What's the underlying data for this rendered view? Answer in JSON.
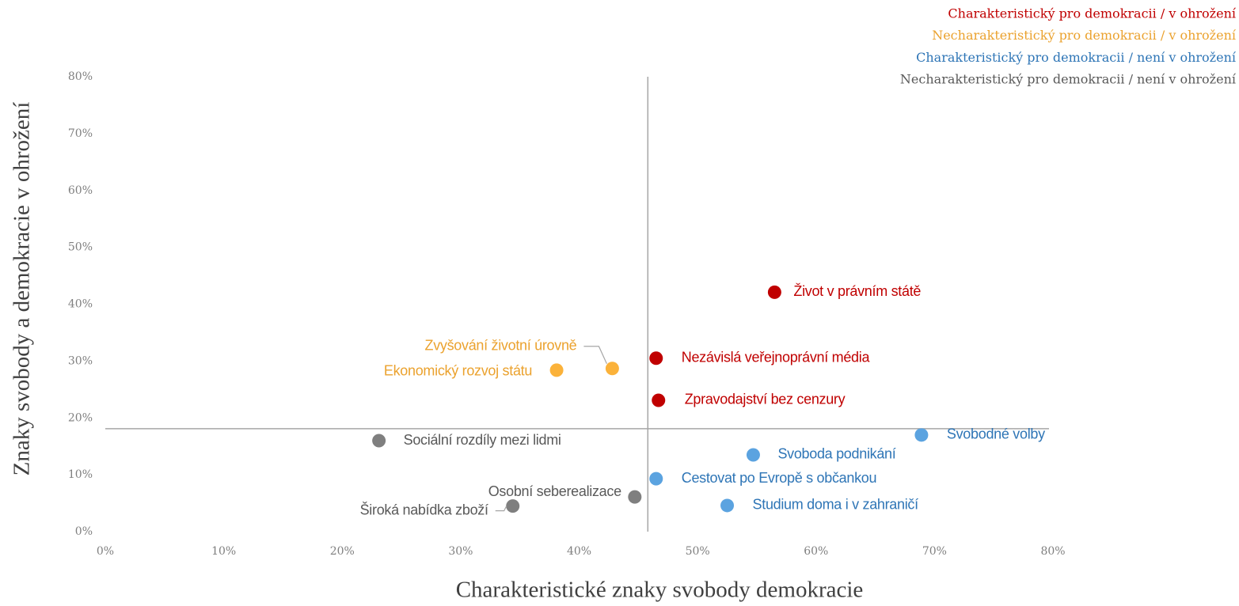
{
  "chart_data": {
    "type": "scatter",
    "xlabel": "Charakteristické znaky svobody demokracie",
    "ylabel": "Znaky svobody a demokracie v ohrožení",
    "xlim": [
      0,
      80
    ],
    "ylim": [
      0,
      80
    ],
    "xticks": [
      {
        "value": 0,
        "label": "0%"
      },
      {
        "value": 10,
        "label": "10%"
      },
      {
        "value": 20,
        "label": "20%"
      },
      {
        "value": 30,
        "label": "30%"
      },
      {
        "value": 40,
        "label": "40%"
      },
      {
        "value": 50,
        "label": "50%"
      },
      {
        "value": 60,
        "label": "60%"
      },
      {
        "value": 70,
        "label": "70%"
      },
      {
        "value": 80,
        "label": "80%"
      }
    ],
    "yticks": [
      {
        "value": 0,
        "label": "0%"
      },
      {
        "value": 10,
        "label": "10%"
      },
      {
        "value": 20,
        "label": "20%"
      },
      {
        "value": 30,
        "label": "30%"
      },
      {
        "value": 40,
        "label": "40%"
      },
      {
        "value": 50,
        "label": "50%"
      },
      {
        "value": 60,
        "label": "60%"
      },
      {
        "value": 70,
        "label": "70%"
      },
      {
        "value": 80,
        "label": "80%"
      }
    ],
    "grid": false,
    "legend": "top-right",
    "crosshair": {
      "x": 45.8,
      "y": 18.1,
      "color": "#a6a6a6"
    },
    "series": [
      {
        "name": "Charakteristický pro demokracii / v ohrožení",
        "color": "#c00000",
        "label_color": "#c00000",
        "labels": [
          "Život v právním státě",
          "Nezávislá veřejnoprávní média",
          "Zpravodajství bez cenzury"
        ],
        "x": [
          56.5,
          46.5,
          46.7
        ],
        "y": [
          42.1,
          30.5,
          23.1
        ]
      },
      {
        "name": "Necharakteristický pro demokracii / v ohrožení",
        "color": "#fbb23a",
        "label_color": "#eba22e",
        "labels": [
          "Zvyšování životní úrovně",
          "Ekonomický rozvoj státu"
        ],
        "x": [
          42.8,
          38.1
        ],
        "y": [
          28.7,
          28.4
        ]
      },
      {
        "name": "Charakteristický pro demokracii / není v ohrožení",
        "color": "#5ba3e0",
        "label_color": "#2e75b6",
        "labels": [
          "Svobodné volby",
          "Svoboda podnikání",
          "Cestovat po Evropě s občankou",
          "Studium doma i v zahraničí"
        ],
        "x": [
          68.9,
          54.7,
          46.5,
          52.5
        ],
        "y": [
          17.0,
          13.5,
          9.3,
          4.6
        ]
      },
      {
        "name": "Necharakteristický pro demokracii / není v ohrožení",
        "color": "#7f7f7f",
        "label_color": "#595959",
        "labels": [
          "Sociální rozdíly mezi lidmi",
          "Osobní seberealizace",
          "Široká nabídka zboží"
        ],
        "x": [
          23.1,
          44.7,
          34.4
        ],
        "y": [
          16.0,
          6.1,
          4.5
        ]
      }
    ]
  }
}
